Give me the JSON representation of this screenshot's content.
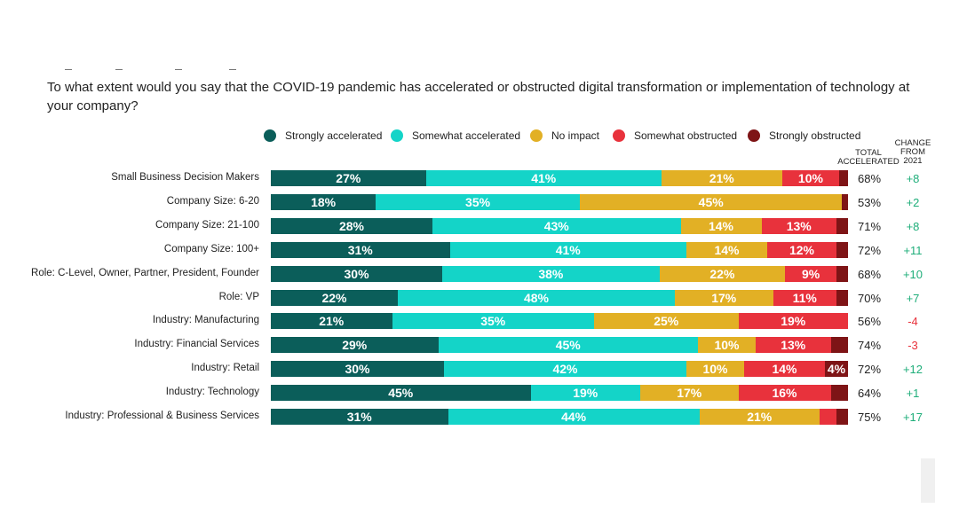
{
  "question": "To what extent would you say that the COVID-19 pandemic has accelerated or obstructed digital transformation or implementation of technology at your company?",
  "colors": {
    "Strongly accelerated": "#0b5e5a",
    "Somewhat accelerated": "#14d4c8",
    "No impact": "#e2b025",
    "Somewhat obstructed": "#e8323c",
    "Strongly obstructed": "#7e1416",
    "positive": "#1fae7a",
    "negative": "#e8323c"
  },
  "headers": {
    "total": "TOTAL ACCELERATED",
    "change": "CHANGE FROM 2021"
  },
  "chart_data": {
    "type": "bar",
    "stacked": true,
    "orientation": "horizontal",
    "xlim": [
      0,
      100
    ],
    "legend_placement": "top",
    "categories": [
      "Small Business Decision Makers",
      "Company Size: 6-20",
      "Company Size: 21-100",
      "Company Size: 100+",
      "Role: C-Level, Owner, Partner, President, Founder",
      "Role: VP",
      "Industry: Manufacturing",
      "Industry: Financial Services",
      "Industry: Retail",
      "Industry: Technology",
      "Industry: Professional & Business Services"
    ],
    "series": [
      {
        "name": "Strongly accelerated",
        "values": [
          27,
          18,
          28,
          31,
          30,
          22,
          21,
          29,
          30,
          45,
          31
        ],
        "labels": [
          "27%",
          "18%",
          "28%",
          "31%",
          "30%",
          "22%",
          "21%",
          "29%",
          "30%",
          "45%",
          "31%"
        ]
      },
      {
        "name": "Somewhat accelerated",
        "values": [
          41,
          35,
          43,
          41,
          38,
          48,
          35,
          45,
          42,
          19,
          44
        ],
        "labels": [
          "41%",
          "35%",
          "43%",
          "41%",
          "38%",
          "48%",
          "35%",
          "45%",
          "42%",
          "19%",
          "44%"
        ]
      },
      {
        "name": "No impact",
        "values": [
          21,
          45,
          14,
          14,
          22,
          17,
          25,
          10,
          10,
          17,
          21
        ],
        "labels": [
          "21%",
          "45%",
          "14%",
          "14%",
          "22%",
          "17%",
          "25%",
          "10%",
          "10%",
          "17%",
          "21%"
        ]
      },
      {
        "name": "Somewhat obstructed",
        "values": [
          10,
          0,
          13,
          12,
          9,
          11,
          19,
          13,
          14,
          16,
          3
        ],
        "labels": [
          "10%",
          "",
          "13%",
          "12%",
          "9%",
          "11%",
          "19%",
          "13%",
          "14%",
          "16%",
          ""
        ]
      },
      {
        "name": "Strongly obstructed",
        "values": [
          1.5,
          1,
          2,
          2,
          2,
          2,
          0,
          3,
          4,
          3,
          2
        ],
        "labels": [
          "",
          "",
          "",
          "",
          "",
          "",
          "",
          "",
          "4%",
          "",
          ""
        ]
      }
    ],
    "total_accelerated": [
      "68%",
      "53%",
      "71%",
      "72%",
      "68%",
      "70%",
      "56%",
      "74%",
      "72%",
      "64%",
      "75%"
    ],
    "change_from_2021": [
      "+8",
      "+2",
      "+8",
      "+11",
      "+10",
      "+7",
      "-4",
      "-3",
      "+12",
      "+1",
      "+17"
    ]
  }
}
